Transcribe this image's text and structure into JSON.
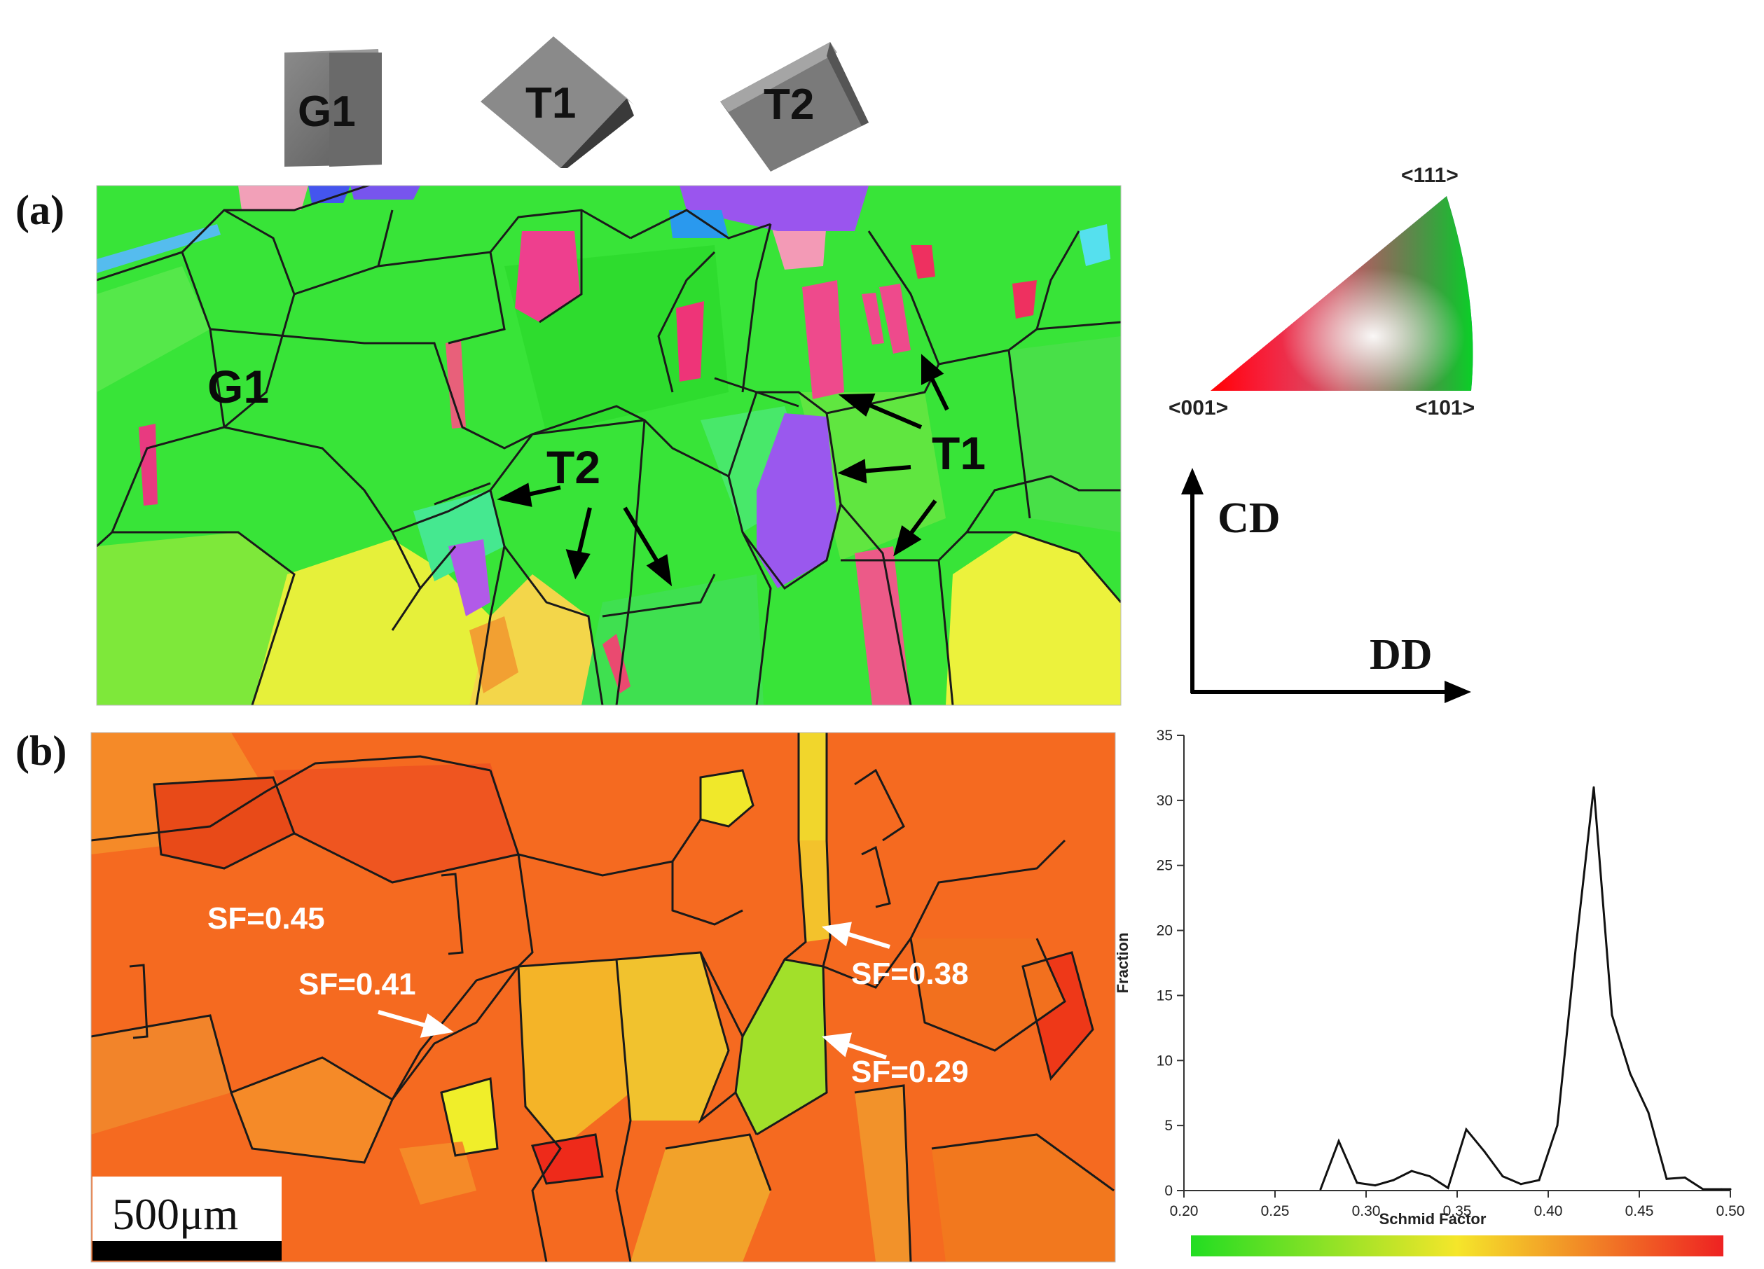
{
  "figure": {
    "crystals": [
      "G1",
      "T1",
      "T2"
    ],
    "panel_a": {
      "label": "(a)",
      "grain_labels": [
        "G1",
        "T2",
        "T1"
      ],
      "ipf_poles": [
        "<111>",
        "<001>",
        "<101>"
      ],
      "axes": {
        "vertical": "CD",
        "horizontal": "DD"
      }
    },
    "panel_b": {
      "label": "(b)",
      "sf_labels": [
        "SF=0.45",
        "SF=0.41",
        "SF=0.38",
        "SF=0.29"
      ],
      "scale_bar": "500μm"
    },
    "colors": {
      "green": "#33e333",
      "pink": "#f0407e",
      "violet": "#9a55ee",
      "orange": "#f56a20",
      "yellow": "#f2e62a"
    }
  },
  "chart_data": {
    "type": "line",
    "title": "",
    "xlabel": "Schmid Factor",
    "ylabel": "Fraction",
    "xlim": [
      0.2,
      0.5
    ],
    "ylim": [
      0,
      35
    ],
    "xticks": [
      "0.20",
      "0.25",
      "0.30",
      "0.35",
      "0.40",
      "0.45",
      "0.50"
    ],
    "yticks": [
      "0",
      "5",
      "10",
      "15",
      "20",
      "25",
      "30",
      "35"
    ],
    "x": [
      0.275,
      0.285,
      0.295,
      0.305,
      0.315,
      0.325,
      0.335,
      0.345,
      0.355,
      0.365,
      0.375,
      0.385,
      0.395,
      0.405,
      0.415,
      0.425,
      0.435,
      0.445,
      0.455,
      0.465,
      0.475,
      0.485,
      0.495,
      0.5
    ],
    "y": [
      0.1,
      3.8,
      0.6,
      0.4,
      0.8,
      1.5,
      1.1,
      0.2,
      4.7,
      3.0,
      1.1,
      0.5,
      0.8,
      5.0,
      18.5,
      31.0,
      13.5,
      9.0,
      6.0,
      0.9,
      1.0,
      0.1,
      0.1,
      0.1
    ],
    "colorbar": {
      "from": "#22dd22",
      "via": "#f5e62a",
      "to": "#ee2222",
      "range": [
        0.2,
        0.5
      ]
    }
  }
}
